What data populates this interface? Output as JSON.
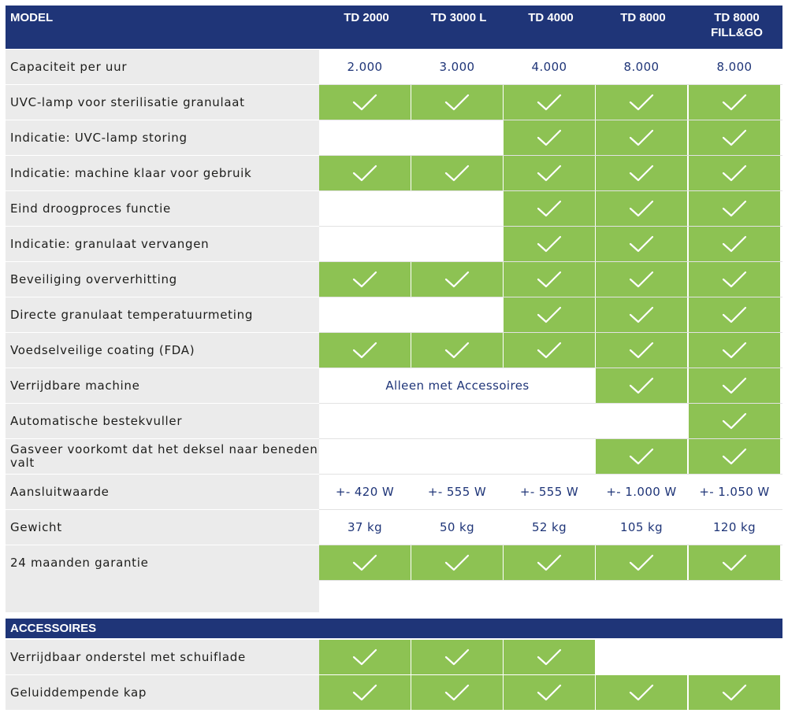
{
  "header": {
    "model_label": "MODEL",
    "columns": [
      "TD 2000",
      "TD 3000 L",
      "TD 4000",
      "TD 8000",
      "TD 8000 FILL&GO"
    ]
  },
  "rows": [
    {
      "label": "Capaciteit per uur",
      "values": [
        "2.000",
        "3.000",
        "4.000",
        "8.000",
        "8.000"
      ],
      "checks": [
        false,
        false,
        false,
        false,
        false
      ]
    },
    {
      "label": "UVC-lamp voor sterilisatie granulaat",
      "values": [
        "",
        "",
        "",
        "",
        ""
      ],
      "checks": [
        true,
        true,
        true,
        true,
        true
      ]
    },
    {
      "label": "Indicatie: UVC-lamp storing",
      "values": [
        "",
        "",
        "",
        "",
        ""
      ],
      "checks": [
        false,
        false,
        true,
        true,
        true
      ]
    },
    {
      "label": "Indicatie: machine klaar voor gebruik",
      "values": [
        "",
        "",
        "",
        "",
        ""
      ],
      "checks": [
        true,
        true,
        true,
        true,
        true
      ]
    },
    {
      "label": "Eind droogproces functie",
      "values": [
        "",
        "",
        "",
        "",
        ""
      ],
      "checks": [
        false,
        false,
        true,
        true,
        true
      ]
    },
    {
      "label": "Indicatie: granulaat vervangen",
      "values": [
        "",
        "",
        "",
        "",
        ""
      ],
      "checks": [
        false,
        false,
        true,
        true,
        true
      ]
    },
    {
      "label": "Beveiliging oververhitting",
      "values": [
        "",
        "",
        "",
        "",
        ""
      ],
      "checks": [
        true,
        true,
        true,
        true,
        true
      ]
    },
    {
      "label": "Directe granulaat temperatuurmeting",
      "values": [
        "",
        "",
        "",
        "",
        ""
      ],
      "checks": [
        false,
        false,
        true,
        true,
        true
      ]
    },
    {
      "label": "Voedselveilige coating (FDA)",
      "values": [
        "",
        "",
        "",
        "",
        ""
      ],
      "checks": [
        true,
        true,
        true,
        true,
        true
      ]
    },
    {
      "label": "Verrijdbare machine",
      "values": [
        "",
        "",
        "",
        "",
        ""
      ],
      "checks": [
        false,
        false,
        false,
        true,
        true
      ],
      "span_text": "Alleen met Accessoires"
    },
    {
      "label": "Automatische bestekvuller",
      "values": [
        "",
        "",
        "",
        "",
        ""
      ],
      "checks": [
        false,
        false,
        false,
        false,
        true
      ]
    },
    {
      "label": "Gasveer voorkomt dat het deksel naar beneden valt",
      "values": [
        "",
        "",
        "",
        "",
        ""
      ],
      "checks": [
        false,
        false,
        false,
        true,
        true
      ]
    },
    {
      "label": "Aansluitwaarde",
      "values": [
        "+- 420 W",
        "+- 555 W",
        "+- 555 W",
        "+- 1.000 W",
        "+- 1.050 W"
      ],
      "checks": [
        false,
        false,
        false,
        false,
        false
      ]
    },
    {
      "label": "Gewicht",
      "values": [
        "37 kg",
        "50 kg",
        "52 kg",
        "105 kg",
        "120 kg"
      ],
      "checks": [
        false,
        false,
        false,
        false,
        false
      ]
    },
    {
      "label": "24 maanden garantie",
      "values": [
        "",
        "",
        "",
        "",
        ""
      ],
      "checks": [
        true,
        true,
        true,
        true,
        true
      ]
    }
  ],
  "accessories": {
    "title": "ACCESSOIRES",
    "rows": [
      {
        "label": "Verrijdbaar onderstel met schuiflade",
        "checks": [
          true,
          true,
          true,
          false,
          false
        ]
      },
      {
        "label": "Geluiddempende kap",
        "checks": [
          true,
          true,
          true,
          true,
          true
        ]
      }
    ]
  },
  "colors": {
    "header_bg": "#1f3578",
    "check_bg": "#8dc253",
    "label_bg": "#ebebeb",
    "value_text": "#1f3578"
  }
}
